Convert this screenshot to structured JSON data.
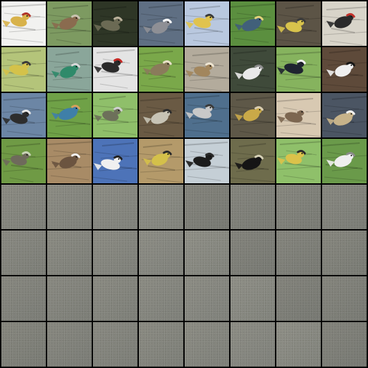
{
  "grid": {
    "rows": 8,
    "cols": 8,
    "tiles": [
      {
        "subject": "goldfinch-on-branch",
        "bg": "#f2f2f0",
        "body": "#d8b24a",
        "accent": "#b0342a",
        "kind": "bird"
      },
      {
        "subject": "bird-on-post-grass",
        "bg": "#7d9a61",
        "body": "#8a6b4f",
        "accent": "#c8c3b0",
        "kind": "bird"
      },
      {
        "subject": "bird-in-dark-foliage",
        "bg": "#2e3626",
        "body": "#6b6a54",
        "accent": "#b9b09a",
        "kind": "bird"
      },
      {
        "subject": "white-crowned-sparrow",
        "bg": "#5f6f83",
        "body": "#8e8f95",
        "accent": "#ffffff",
        "kind": "bird"
      },
      {
        "subject": "yellow-bird-twig-sky",
        "bg": "#b9c8df",
        "body": "#e0c34e",
        "accent": "#3a3a3a",
        "kind": "bird"
      },
      {
        "subject": "bird-green-leaves",
        "bg": "#5b8f3f",
        "body": "#41607a",
        "accent": "#e2d27b",
        "kind": "bird"
      },
      {
        "subject": "bird-in-brush",
        "bg": "#5c5446",
        "body": "#d8c34c",
        "accent": "#3a3a3a",
        "kind": "bird"
      },
      {
        "subject": "woodpecker-on-trunk",
        "bg": "#d8d4c9",
        "body": "#2a2a2a",
        "accent": "#c2312a",
        "kind": "bird"
      },
      {
        "subject": "yellow-warbler-branch",
        "bg": "#b4c47a",
        "body": "#d4c24a",
        "accent": "#3b3b3b",
        "kind": "bird"
      },
      {
        "subject": "hummingbird-perch",
        "bg": "#8aa69a",
        "body": "#2f8a6a",
        "accent": "#d8d8d8",
        "kind": "bird"
      },
      {
        "subject": "woodpecker-feeder",
        "bg": "#e4e4e4",
        "body": "#2b2b2b",
        "accent": "#c52a26",
        "kind": "bird"
      },
      {
        "subject": "bird-in-reeds",
        "bg": "#7aa84a",
        "body": "#8a7b5b",
        "accent": "#e8e1c9",
        "kind": "bird"
      },
      {
        "subject": "sparrow-on-gravel",
        "bg": "#b3ab9c",
        "body": "#a2865d",
        "accent": "#ede4d2",
        "kind": "bird"
      },
      {
        "subject": "gull-on-rocks",
        "bg": "#3f4a3a",
        "body": "#e9e9e9",
        "accent": "#8c8c8c",
        "kind": "bird"
      },
      {
        "subject": "swallow-on-branch",
        "bg": "#86b35e",
        "body": "#1f2430",
        "accent": "#f2f2f2",
        "kind": "bird"
      },
      {
        "subject": "woodpecker-bark",
        "bg": "#5e4a3a",
        "body": "#efefef",
        "accent": "#151515",
        "kind": "bird"
      },
      {
        "subject": "ducks-on-water",
        "bg": "#6c86a5",
        "body": "#2d2d2d",
        "accent": "#e8e8e8",
        "kind": "bird"
      },
      {
        "subject": "blue-bird-leaves",
        "bg": "#6fa147",
        "body": "#3f7fa8",
        "accent": "#d6a05a",
        "kind": "bird"
      },
      {
        "subject": "bird-behind-leaves",
        "bg": "#8fbf6a",
        "body": "#6d705a",
        "accent": "#cfcfcf",
        "kind": "bird"
      },
      {
        "subject": "striped-bird-twigs",
        "bg": "#6a5a44",
        "body": "#c7c3b5",
        "accent": "#2c2c2c",
        "kind": "bird"
      },
      {
        "subject": "heron-in-water",
        "bg": "#4f6f8d",
        "body": "#c8c8c8",
        "accent": "#3a3a3a",
        "kind": "bird"
      },
      {
        "subject": "yellow-bird-dry-grass",
        "bg": "#5e5848",
        "body": "#c9a948",
        "accent": "#d8ccb0",
        "kind": "bird"
      },
      {
        "subject": "roadrunner-sand",
        "bg": "#d8c9b2",
        "body": "#7c6650",
        "accent": "#d7c7b3",
        "kind": "bird"
      },
      {
        "subject": "duck-dark-water",
        "bg": "#4b5563",
        "body": "#c7b38a",
        "accent": "#f0f0f0",
        "kind": "bird"
      },
      {
        "subject": "bird-in-foliage",
        "bg": "#6f9a45",
        "body": "#6e6a5b",
        "accent": "#c8d3b6",
        "kind": "bird"
      },
      {
        "subject": "plover-on-sand",
        "bg": "#a88b66",
        "body": "#6b5440",
        "accent": "#f2f2f2",
        "kind": "bird"
      },
      {
        "subject": "tern-blue-sky",
        "bg": "#4d73b8",
        "body": "#f0f0f0",
        "accent": "#222222",
        "kind": "bird"
      },
      {
        "subject": "yellow-bird-reeds",
        "bg": "#b49a6a",
        "body": "#d4c04a",
        "accent": "#2a2a2a",
        "kind": "bird"
      },
      {
        "subject": "flying-bird-silhouette",
        "bg": "#c5cfd6",
        "body": "#1c1c1c",
        "accent": "#2a2a2a",
        "kind": "bird"
      },
      {
        "subject": "cormorant-on-rock",
        "bg": "#6e6c4c",
        "body": "#151515",
        "accent": "#d6d1b7",
        "kind": "bird"
      },
      {
        "subject": "yellow-bird-sky-branch",
        "bg": "#8fc06a",
        "body": "#dbc24a",
        "accent": "#2b2b2b",
        "kind": "bird"
      },
      {
        "subject": "gull-on-grass",
        "bg": "#6a9a4a",
        "body": "#efefef",
        "accent": "#8b8b8b",
        "kind": "bird"
      },
      {
        "subject": "noise",
        "kind": "noise"
      },
      {
        "subject": "noise",
        "kind": "noise"
      },
      {
        "subject": "noise",
        "kind": "noise"
      },
      {
        "subject": "noise",
        "kind": "noise"
      },
      {
        "subject": "noise",
        "kind": "noise"
      },
      {
        "subject": "noise",
        "kind": "noise"
      },
      {
        "subject": "noise",
        "kind": "noise"
      },
      {
        "subject": "noise",
        "kind": "noise"
      },
      {
        "subject": "noise",
        "kind": "noise"
      },
      {
        "subject": "noise",
        "kind": "noise"
      },
      {
        "subject": "noise",
        "kind": "noise"
      },
      {
        "subject": "noise",
        "kind": "noise"
      },
      {
        "subject": "noise",
        "kind": "noise"
      },
      {
        "subject": "noise",
        "kind": "noise"
      },
      {
        "subject": "noise",
        "kind": "noise"
      },
      {
        "subject": "noise",
        "kind": "noise"
      },
      {
        "subject": "noise",
        "kind": "noise"
      },
      {
        "subject": "noise",
        "kind": "noise"
      },
      {
        "subject": "noise",
        "kind": "noise"
      },
      {
        "subject": "noise",
        "kind": "noise"
      },
      {
        "subject": "noise",
        "kind": "noise"
      },
      {
        "subject": "noise",
        "kind": "noise"
      },
      {
        "subject": "noise",
        "kind": "noise"
      },
      {
        "subject": "noise",
        "kind": "noise"
      },
      {
        "subject": "noise",
        "kind": "noise"
      },
      {
        "subject": "noise",
        "kind": "noise"
      },
      {
        "subject": "noise",
        "kind": "noise"
      },
      {
        "subject": "noise",
        "kind": "noise"
      },
      {
        "subject": "noise",
        "kind": "noise"
      },
      {
        "subject": "noise",
        "kind": "noise"
      },
      {
        "subject": "noise",
        "kind": "noise"
      },
      {
        "subject": "noise",
        "kind": "noise"
      }
    ]
  }
}
